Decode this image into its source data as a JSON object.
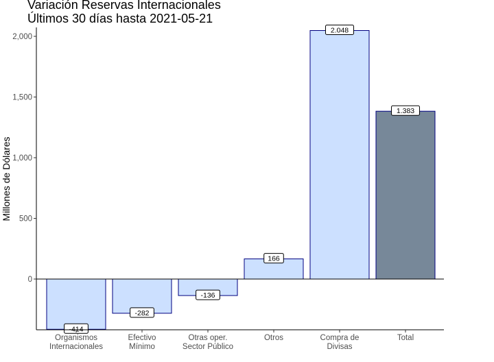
{
  "chart_data": {
    "type": "bar",
    "title": "Variación Reservas Internacionales",
    "subtitle": "Últimos 30 días hasta 2021-05-21",
    "xlabel": "",
    "ylabel": "Millones de Dólares",
    "ylim": [
      -414,
      2048
    ],
    "yticks": [
      0,
      500,
      1000,
      1500,
      2000
    ],
    "ytick_labels": [
      "0",
      "500",
      "1,000",
      "1,500",
      "2,000"
    ],
    "grid": false,
    "categories": [
      [
        "Organismos",
        "Internacionales"
      ],
      [
        "Efectivo",
        "Mínimo"
      ],
      [
        "Otras oper.",
        "Sector Público"
      ],
      [
        "Otros"
      ],
      [
        "Compra de",
        "Divisas"
      ],
      [
        "Total"
      ]
    ],
    "values": [
      -414,
      -282,
      -136,
      166,
      2048,
      1383
    ],
    "data_labels": [
      "-414",
      "-282",
      "-136",
      "166",
      "2.048",
      "1.383"
    ],
    "colors": {
      "bar_fill": "#cce0ff",
      "total_fill": "#778899",
      "bar_border": "#000080"
    }
  }
}
